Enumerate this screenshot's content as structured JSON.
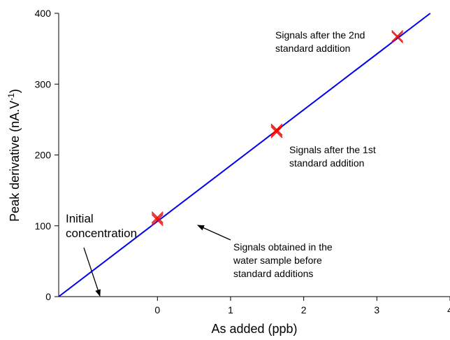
{
  "chart_data": {
    "type": "scatter",
    "title": "",
    "xlabel": "As added (ppb)",
    "ylabel": "Peak derivative (nA.V",
    "ylabel_sup": "-1",
    "ylabel_end": ")",
    "xlim": [
      -1.35,
      4.0
    ],
    "ylim": [
      0,
      400
    ],
    "x_ticks": [
      0,
      1,
      2,
      3,
      4
    ],
    "x_tick_labels": [
      "0",
      "1",
      "2",
      "3",
      "4"
    ],
    "y_ticks": [
      0,
      100,
      200,
      300,
      400
    ],
    "y_tick_labels": [
      "0",
      "100",
      "200",
      "300",
      "400"
    ],
    "grid": false,
    "colors": {
      "fit_line": "#0000ee",
      "markers": "#ff0000",
      "axis": "#000000"
    },
    "series": [
      {
        "type": "scatter",
        "marker": "x",
        "x": [
          0,
          0,
          0,
          1.63,
          1.63,
          1.63,
          3.28,
          3.28
        ],
        "y": [
          108,
          110,
          112,
          232,
          234,
          236,
          366,
          368
        ]
      },
      {
        "type": "line",
        "x": [
          -1.35,
          3.73
        ],
        "y": [
          0,
          400
        ]
      }
    ],
    "annotations": [
      {
        "id": "second",
        "lines": [
          "Signals after the 2nd",
          "standard addition"
        ],
        "arrow": false
      },
      {
        "id": "first",
        "lines": [
          "Signals after the 1st",
          "standard addition"
        ],
        "arrow": false
      },
      {
        "id": "sample",
        "lines": [
          "Signals obtained in the",
          "water sample before",
          "standard additions"
        ],
        "arrow": true,
        "target": {
          "x": 0.1,
          "y": 100
        }
      },
      {
        "id": "initial",
        "lines": [
          "Initial",
          "concentration"
        ],
        "arrow": true,
        "target": {
          "x": -1.35,
          "y": 0
        }
      }
    ]
  }
}
